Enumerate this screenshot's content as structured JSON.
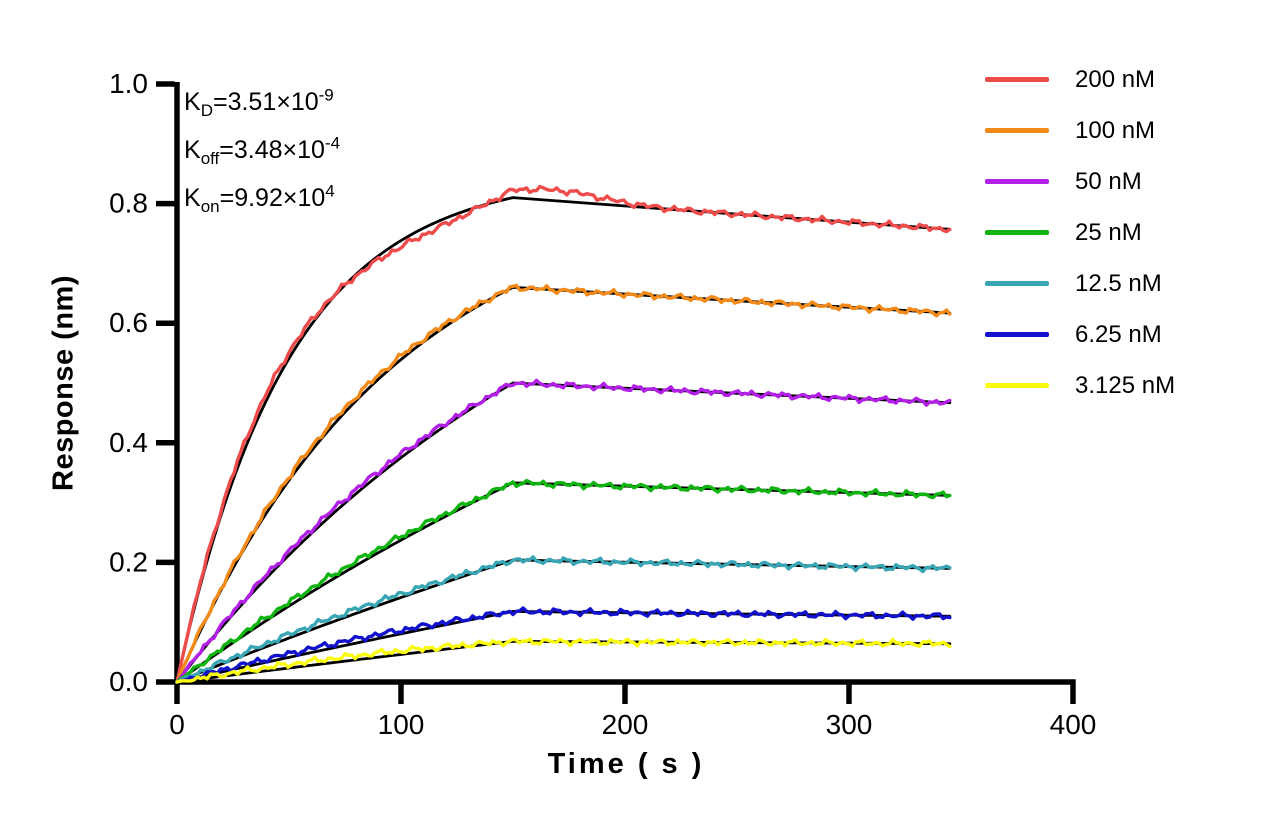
{
  "figure": {
    "background": "#ffffff",
    "axis_color": "#000000"
  },
  "annotation": {
    "lines": [
      {
        "base": "K",
        "sub": "D",
        "eq": "=3.51×10",
        "sup": "-9"
      },
      {
        "base": "K",
        "sub": "off",
        "eq": "=3.48×10",
        "sup": "-4"
      },
      {
        "base": "K",
        "sub": "on",
        "eq": "=9.92×10",
        "sup": "4"
      }
    ]
  },
  "chart_data": {
    "type": "line",
    "title": "",
    "xlabel": "Time ( s )",
    "ylabel": "Response (nm)",
    "xlim": [
      0,
      400
    ],
    "ylim": [
      0,
      1.0
    ],
    "x_ticks": [
      "0",
      "100",
      "200",
      "300",
      "400"
    ],
    "x_tick_values": [
      0,
      100,
      200,
      300,
      400
    ],
    "y_ticks": [
      "0.0",
      "0.2",
      "0.4",
      "0.6",
      "0.8",
      "1.0"
    ],
    "y_tick_values": [
      0,
      0.2,
      0.4,
      0.6,
      0.8,
      1.0
    ],
    "grid": false,
    "legend_position": "top-right",
    "kinetics": {
      "KD_display": "3.51×10⁻⁹",
      "Koff_display": "3.48×10⁻⁴",
      "Kon_display": "9.92×10⁴",
      "kon_value": 99200,
      "koff_value": 0.000348
    },
    "t_start": 0,
    "t_peak": 150,
    "t_end": 345,
    "fit_color": "#000000",
    "series": [
      {
        "name": "200 nM",
        "conc_nM": 200,
        "color": "#EE4B4B",
        "peak_response": 0.81,
        "end_response": 0.757
      },
      {
        "name": "100 nM",
        "conc_nM": 100,
        "color": "#F28A1A",
        "peak_response": 0.66,
        "end_response": 0.617
      },
      {
        "name": "50 nM",
        "conc_nM": 50,
        "color": "#B21FE6",
        "peak_response": 0.5,
        "end_response": 0.467
      },
      {
        "name": "25 nM",
        "conc_nM": 25,
        "color": "#10B410",
        "peak_response": 0.333,
        "end_response": 0.312
      },
      {
        "name": "12.5 nM",
        "conc_nM": 12.5,
        "color": "#38A6B4",
        "peak_response": 0.204,
        "end_response": 0.19
      },
      {
        "name": "6.25 nM",
        "conc_nM": 6.25,
        "color": "#1212CC",
        "peak_response": 0.118,
        "end_response": 0.11
      },
      {
        "name": "3.125 nM",
        "conc_nM": 3.125,
        "color": "#FBFB10",
        "peak_response": 0.068,
        "end_response": 0.064
      }
    ]
  }
}
